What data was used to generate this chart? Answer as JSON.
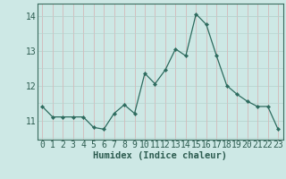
{
  "x": [
    0,
    1,
    2,
    3,
    4,
    5,
    6,
    7,
    8,
    9,
    10,
    11,
    12,
    13,
    14,
    15,
    16,
    17,
    18,
    19,
    20,
    21,
    22,
    23
  ],
  "y": [
    11.4,
    11.1,
    11.1,
    11.1,
    11.1,
    10.8,
    10.75,
    11.2,
    11.45,
    11.2,
    12.35,
    12.05,
    12.45,
    13.05,
    12.85,
    14.05,
    13.75,
    12.85,
    12.0,
    11.75,
    11.55,
    11.4,
    11.4,
    10.75
  ],
  "line_color": "#2d6b5e",
  "marker": "D",
  "marker_size": 2.2,
  "bg_color": "#cde8e5",
  "grid_color_h": "#b8d4d0",
  "grid_color_v": "#d4b8b8",
  "xlabel": "Humidex (Indice chaleur)",
  "xlabel_fontsize": 7.5,
  "ylabel_ticks": [
    11,
    12,
    13,
    14
  ],
  "ylim": [
    10.45,
    14.35
  ],
  "xlim": [
    -0.5,
    23.5
  ],
  "tick_fontsize": 7.0
}
